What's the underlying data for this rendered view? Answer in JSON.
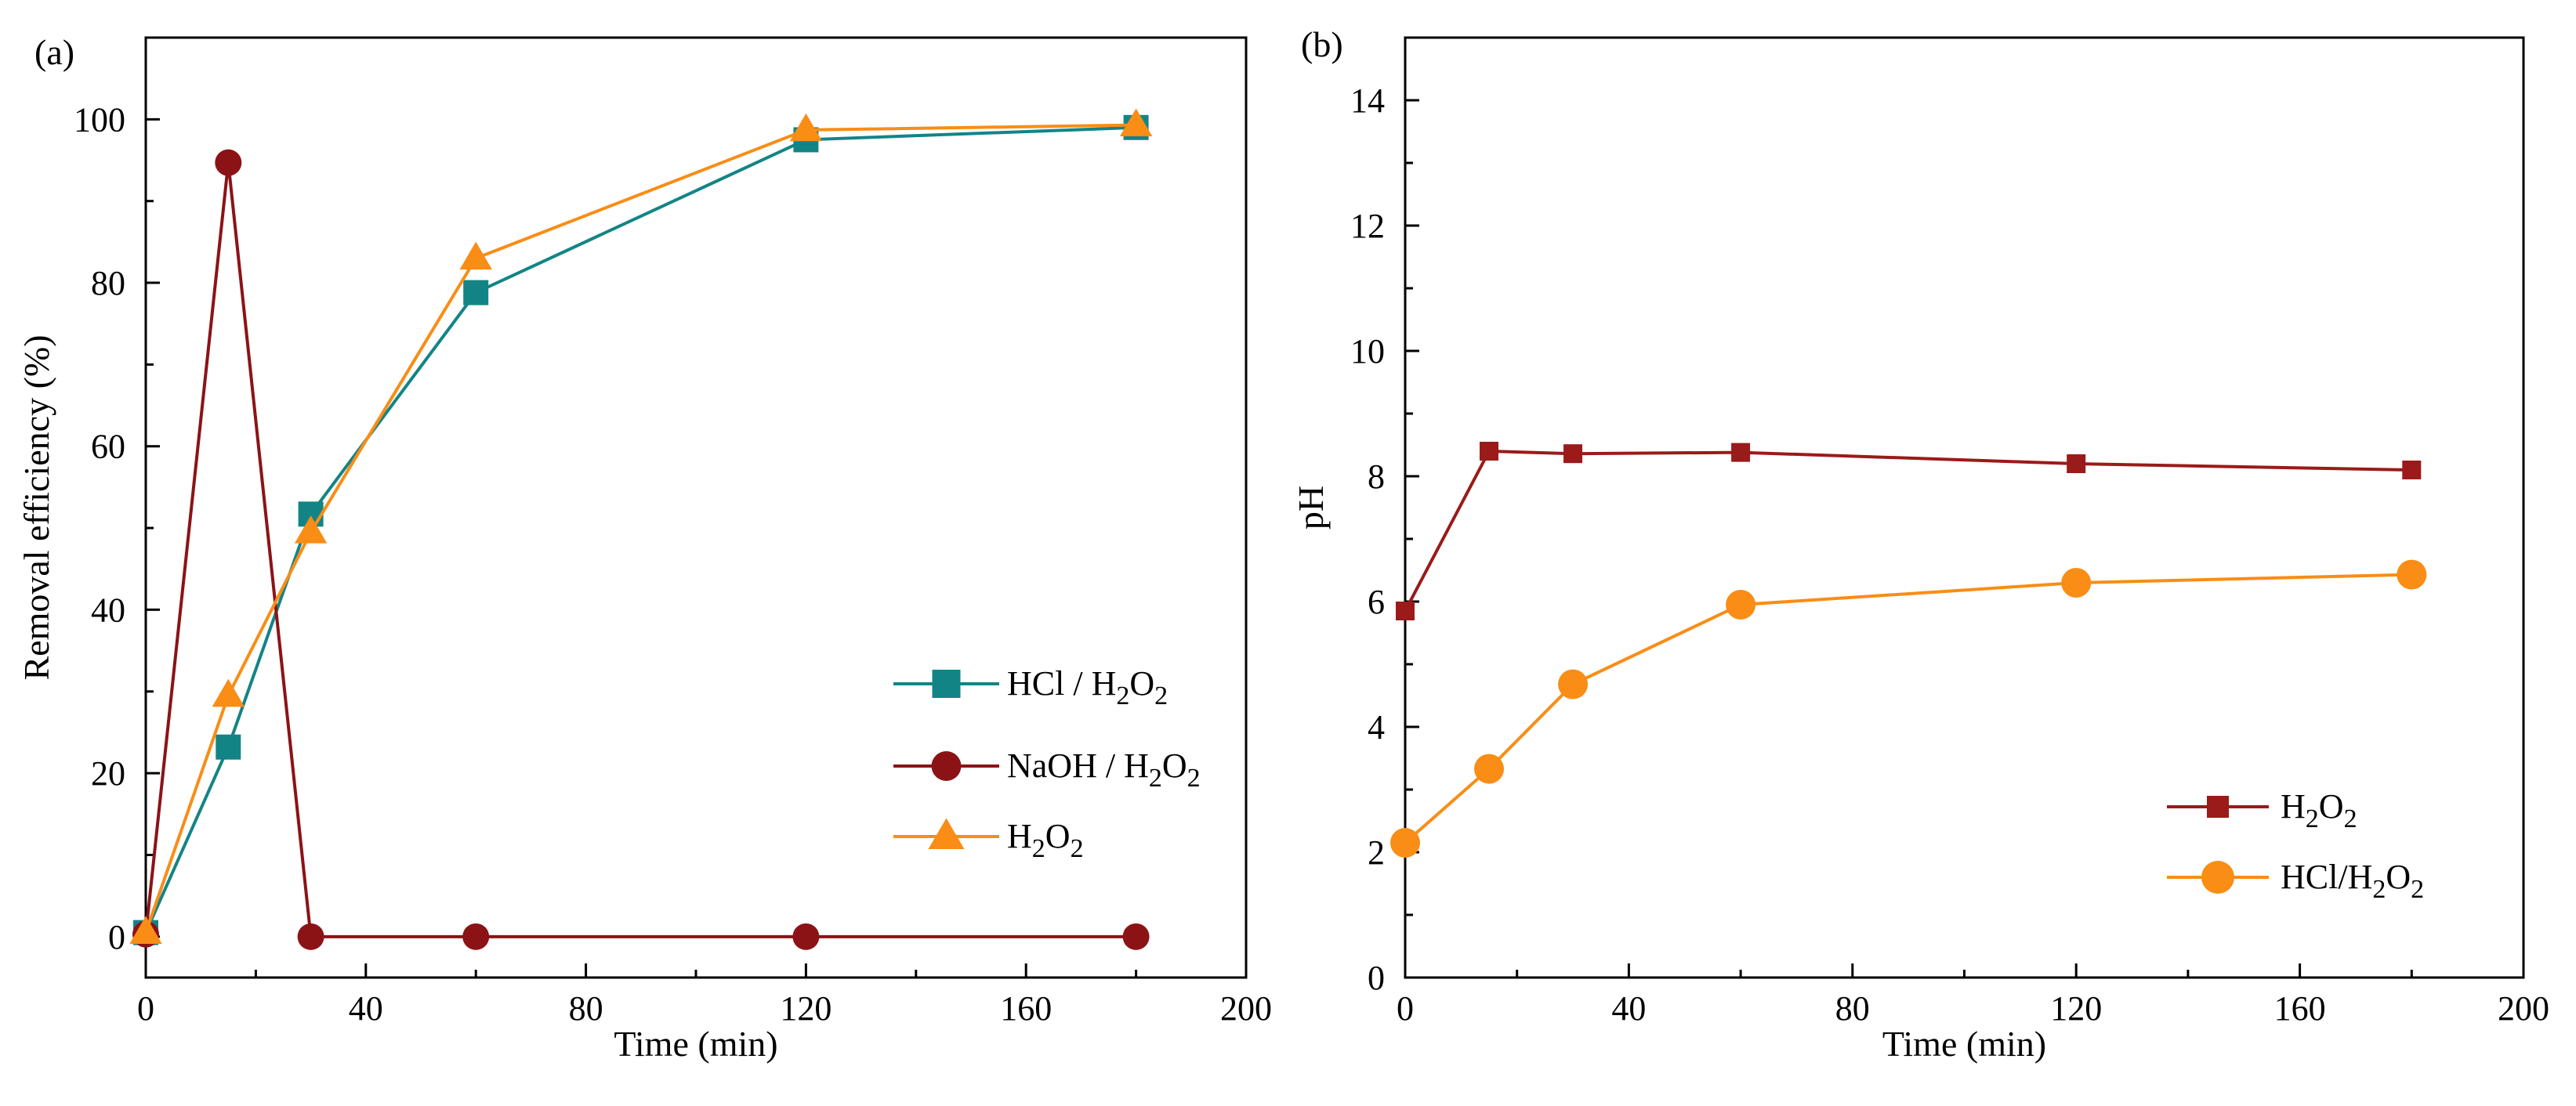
{
  "chart_data": [
    {
      "type": "line",
      "panel_label": "(a)",
      "xlabel": "Time (min)",
      "ylabel": "Removal efficiency (%)",
      "xlim": [
        0,
        200
      ],
      "ylim": [
        -5,
        110
      ],
      "x_ticks": [
        "0",
        "40",
        "80",
        "120",
        "160",
        "200"
      ],
      "y_ticks": [
        "0",
        "20",
        "40",
        "60",
        "80",
        "100"
      ],
      "legend_position": "bottom-right",
      "series": [
        {
          "name": "HCl / H2O2",
          "label_parts": [
            "HCl / H",
            "2",
            "O",
            "2"
          ],
          "marker": "square",
          "color": "#138486",
          "x": [
            0,
            15,
            30,
            60,
            120,
            180
          ],
          "y": [
            0.5,
            23.2,
            51.7,
            78.8,
            97.5,
            99.0
          ]
        },
        {
          "name": "NaOH / H2O2",
          "label_parts": [
            "NaOH / H",
            "2",
            "O",
            "2"
          ],
          "marker": "circle",
          "color": "#8b1316",
          "x": [
            0,
            15,
            30,
            60,
            120,
            180
          ],
          "y": [
            0.3,
            94.7,
            0,
            0,
            0,
            0
          ]
        },
        {
          "name": "H2O2",
          "label_parts": [
            "H",
            "2",
            "O",
            "2"
          ],
          "marker": "triangle",
          "color": "#f98d16",
          "x": [
            0,
            15,
            30,
            60,
            120,
            180
          ],
          "y": [
            0.5,
            29.5,
            49.5,
            83.0,
            98.7,
            99.3
          ]
        }
      ]
    },
    {
      "type": "line",
      "panel_label": "(b)",
      "xlabel": "Time (min)",
      "ylabel": "pH",
      "xlim": [
        0,
        200
      ],
      "ylim": [
        0,
        15
      ],
      "x_ticks": [
        "0",
        "40",
        "80",
        "120",
        "160",
        "200"
      ],
      "y_ticks": [
        "0",
        "2",
        "4",
        "6",
        "8",
        "10",
        "12",
        "14"
      ],
      "legend_position": "bottom-right",
      "series": [
        {
          "name": "H2O2",
          "label_parts": [
            "H",
            "2",
            "O",
            "2"
          ],
          "marker": "square",
          "color": "#9b1a1a",
          "x": [
            0,
            15,
            30,
            60,
            120,
            180
          ],
          "y": [
            5.85,
            8.4,
            8.36,
            8.38,
            8.2,
            8.1
          ]
        },
        {
          "name": "HCl/H2O2",
          "label_parts": [
            "HCl/H",
            "2",
            "O",
            "2"
          ],
          "marker": "circle",
          "color": "#f98d16",
          "x": [
            0,
            15,
            30,
            60,
            120,
            180
          ],
          "y": [
            2.15,
            3.33,
            4.68,
            5.95,
            6.3,
            6.43
          ]
        }
      ]
    }
  ]
}
